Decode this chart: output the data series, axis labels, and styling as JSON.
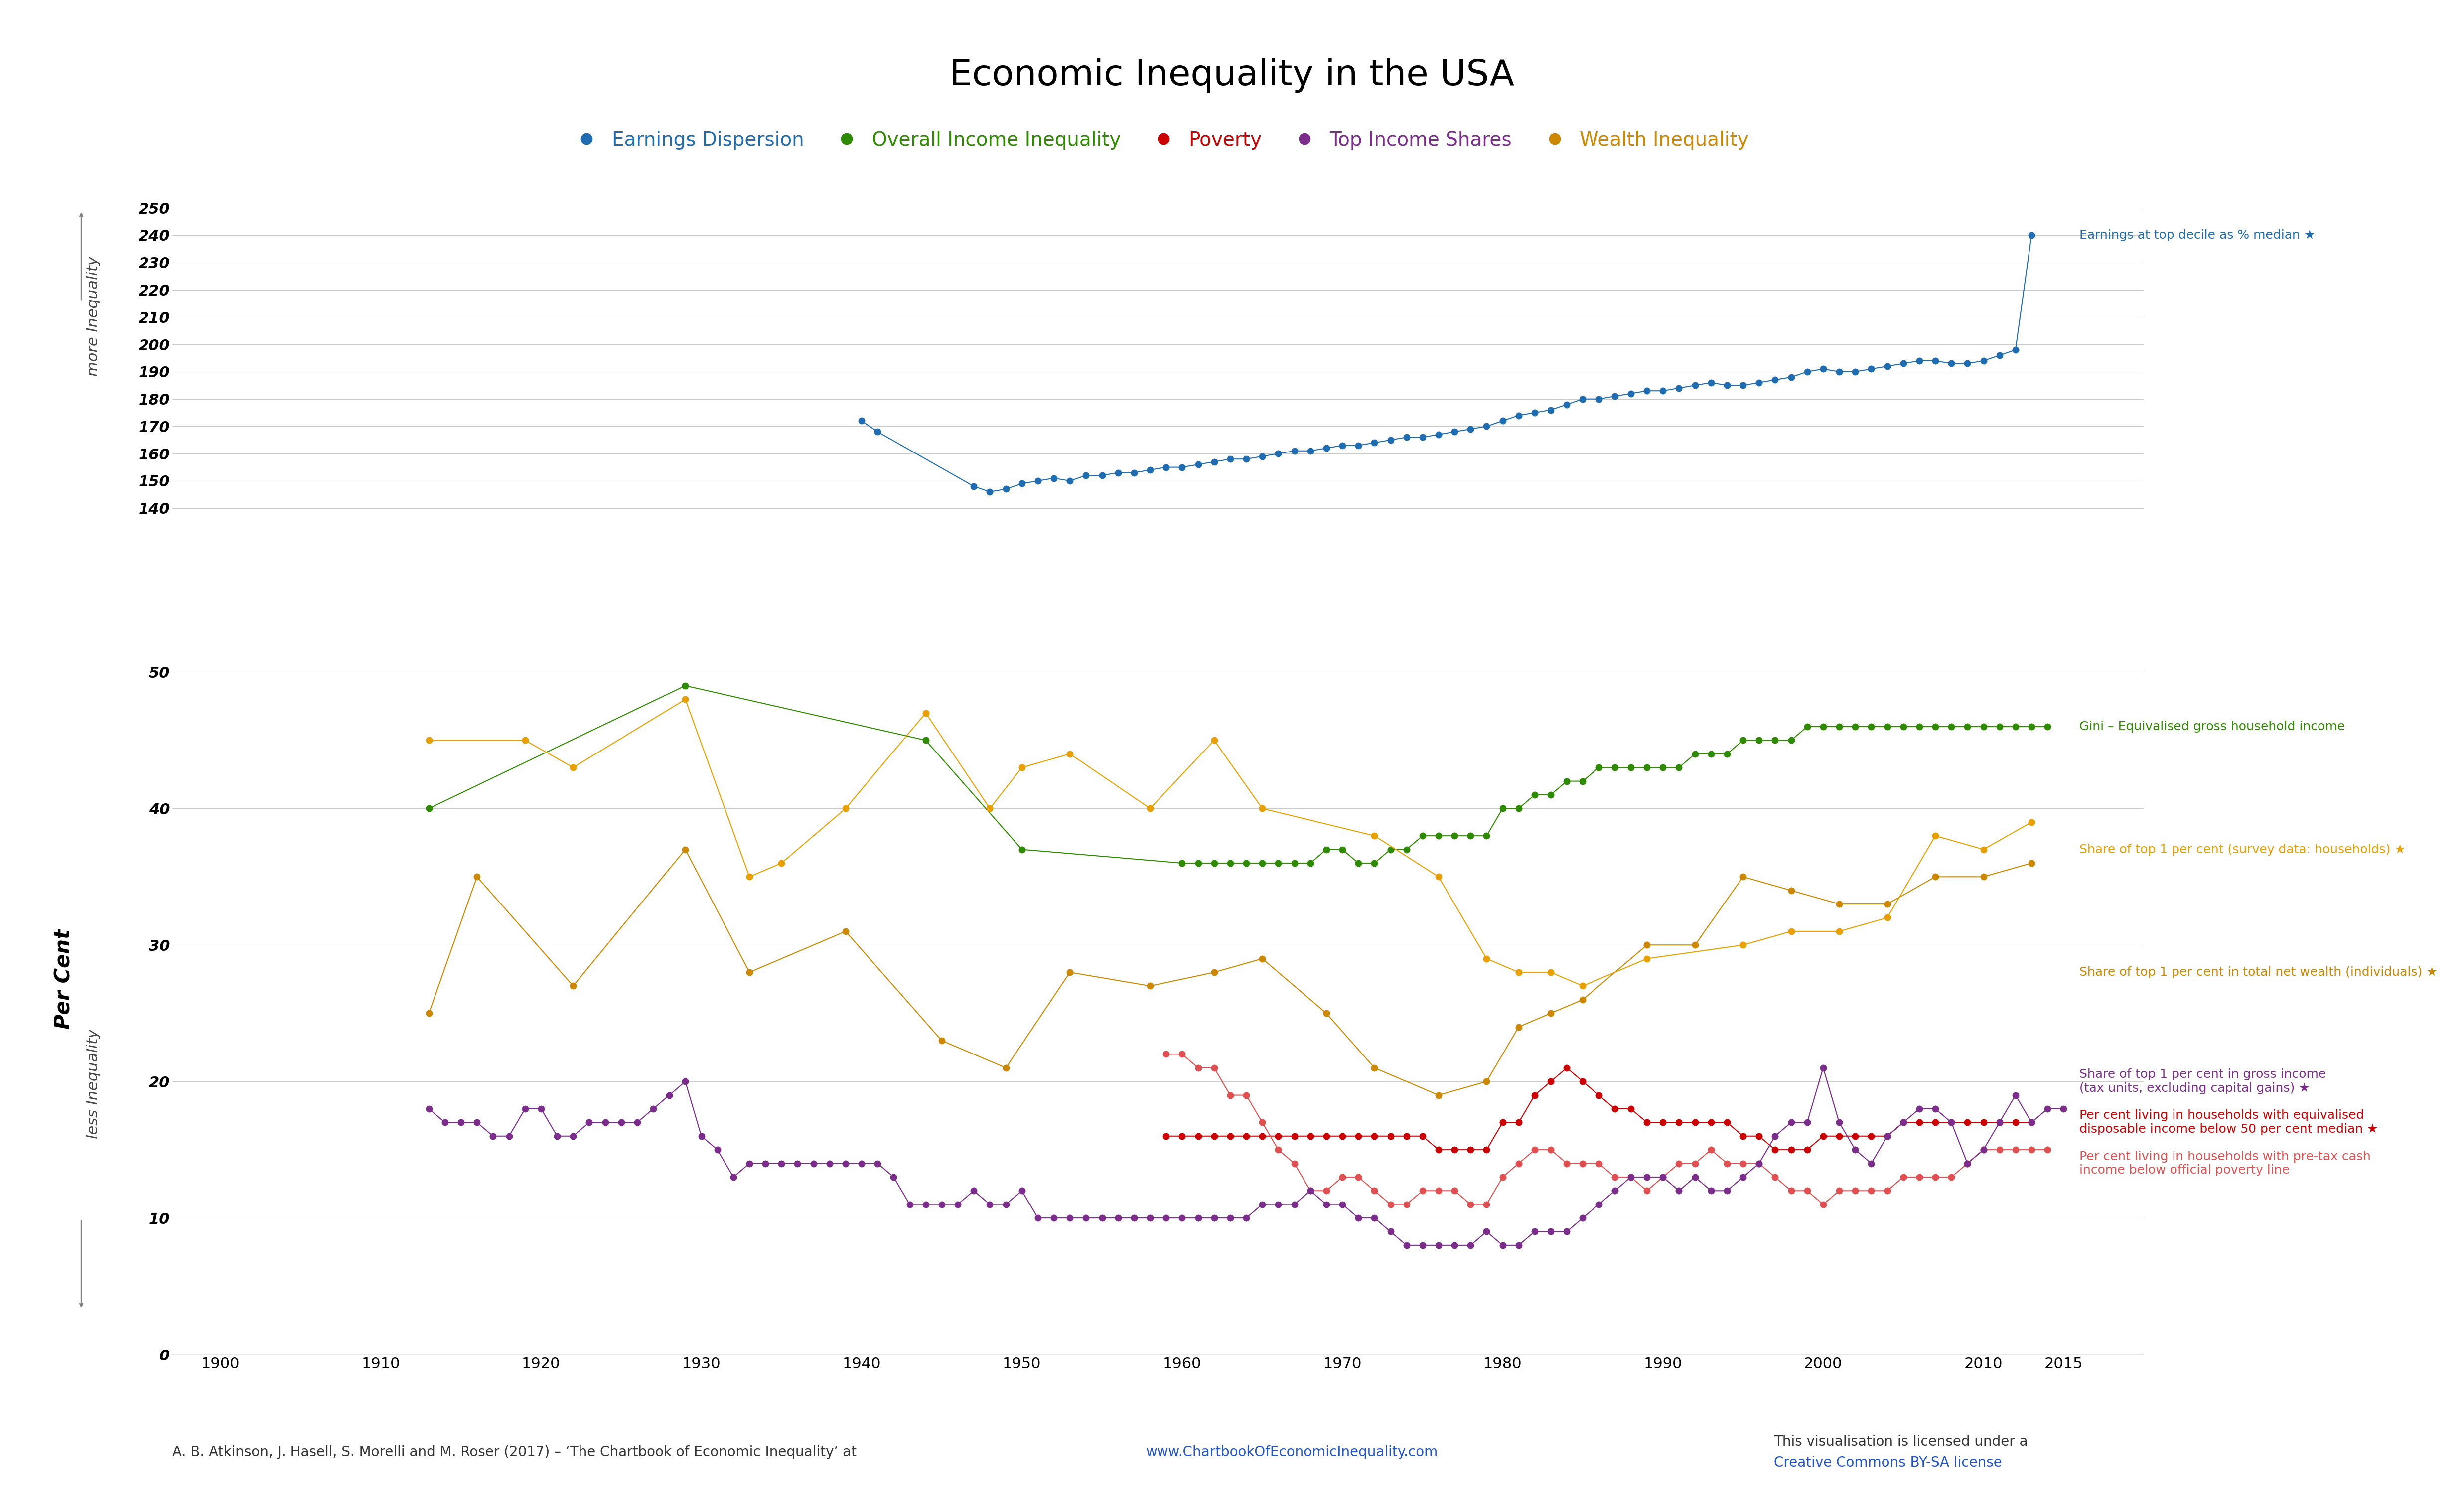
{
  "title": "Economic Inequality in the USA",
  "title_fontsize": 52,
  "background_color": "#ffffff",
  "legend_categories": [
    "Earnings Dispersion",
    "Overall Income Inequality",
    "Poverty",
    "Top Income Shares",
    "Wealth Inequality"
  ],
  "legend_colors": [
    "#1f6cb0",
    "#2e8b00",
    "#cc0000",
    "#7b2d8b",
    "#cc8800"
  ],
  "earnings_dispersion": {
    "label": "Earnings at top decile as % median ★",
    "color": "#1f6cb0",
    "x": [
      1940,
      1941,
      1947,
      1948,
      1949,
      1950,
      1951,
      1952,
      1953,
      1954,
      1955,
      1956,
      1957,
      1958,
      1959,
      1960,
      1961,
      1962,
      1963,
      1964,
      1965,
      1966,
      1967,
      1968,
      1969,
      1970,
      1971,
      1972,
      1973,
      1974,
      1975,
      1976,
      1977,
      1978,
      1979,
      1980,
      1981,
      1982,
      1983,
      1984,
      1985,
      1986,
      1987,
      1988,
      1989,
      1990,
      1991,
      1992,
      1993,
      1994,
      1995,
      1996,
      1997,
      1998,
      1999,
      2000,
      2001,
      2002,
      2003,
      2004,
      2005,
      2006,
      2007,
      2008,
      2009,
      2010,
      2011,
      2012,
      2013
    ],
    "y": [
      172,
      168,
      148,
      146,
      147,
      149,
      150,
      151,
      150,
      152,
      152,
      153,
      153,
      154,
      155,
      155,
      156,
      157,
      158,
      158,
      159,
      160,
      161,
      161,
      162,
      163,
      163,
      164,
      165,
      166,
      166,
      167,
      168,
      169,
      170,
      172,
      174,
      175,
      176,
      178,
      180,
      180,
      181,
      182,
      183,
      183,
      184,
      185,
      186,
      185,
      185,
      186,
      187,
      188,
      190,
      191,
      190,
      190,
      191,
      192,
      193,
      194,
      194,
      193,
      193,
      194,
      196,
      198,
      240
    ]
  },
  "gini": {
    "label": "Gini – Equivalised gross household income",
    "color": "#2e8b00",
    "x": [
      1913,
      1929,
      1944,
      1950,
      1960,
      1961,
      1962,
      1963,
      1964,
      1965,
      1966,
      1967,
      1968,
      1969,
      1970,
      1971,
      1972,
      1973,
      1974,
      1975,
      1976,
      1977,
      1978,
      1979,
      1980,
      1981,
      1982,
      1983,
      1984,
      1985,
      1986,
      1987,
      1988,
      1989,
      1990,
      1991,
      1992,
      1993,
      1994,
      1995,
      1996,
      1997,
      1998,
      1999,
      2000,
      2001,
      2002,
      2003,
      2004,
      2005,
      2006,
      2007,
      2008,
      2009,
      2010,
      2011,
      2012,
      2013,
      2014
    ],
    "y": [
      40,
      49,
      45,
      37,
      36,
      36,
      36,
      36,
      36,
      36,
      36,
      36,
      36,
      37,
      37,
      36,
      36,
      37,
      37,
      38,
      38,
      38,
      38,
      38,
      40,
      40,
      41,
      41,
      42,
      42,
      43,
      43,
      43,
      43,
      43,
      43,
      44,
      44,
      44,
      45,
      45,
      45,
      45,
      46,
      46,
      46,
      46,
      46,
      46,
      46,
      46,
      46,
      46,
      46,
      46,
      46,
      46,
      46,
      46
    ]
  },
  "poverty_50pct": {
    "label": "Per cent living in households with equivalised\ndisposable income below 50 per cent median ★",
    "color": "#cc0000",
    "x": [
      1959,
      1960,
      1961,
      1962,
      1963,
      1964,
      1965,
      1966,
      1967,
      1968,
      1969,
      1970,
      1971,
      1972,
      1973,
      1974,
      1975,
      1976,
      1977,
      1978,
      1979,
      1980,
      1981,
      1982,
      1983,
      1984,
      1985,
      1986,
      1987,
      1988,
      1989,
      1990,
      1991,
      1992,
      1993,
      1994,
      1995,
      1996,
      1997,
      1998,
      1999,
      2000,
      2001,
      2002,
      2003,
      2004,
      2005,
      2006,
      2007,
      2008,
      2009,
      2010,
      2011,
      2012,
      2013
    ],
    "y": [
      16,
      16,
      16,
      16,
      16,
      16,
      16,
      16,
      16,
      16,
      16,
      16,
      16,
      16,
      16,
      16,
      16,
      15,
      15,
      15,
      15,
      17,
      17,
      19,
      20,
      21,
      20,
      19,
      18,
      18,
      17,
      17,
      17,
      17,
      17,
      17,
      16,
      16,
      15,
      15,
      15,
      16,
      16,
      16,
      16,
      16,
      17,
      17,
      17,
      17,
      17,
      17,
      17,
      17,
      17
    ]
  },
  "poverty_official": {
    "label": "Per cent living in households with pre-tax cash\nincome below official poverty line",
    "color": "#e05050",
    "x": [
      1959,
      1960,
      1961,
      1962,
      1963,
      1964,
      1965,
      1966,
      1967,
      1968,
      1969,
      1970,
      1971,
      1972,
      1973,
      1974,
      1975,
      1976,
      1977,
      1978,
      1979,
      1980,
      1981,
      1982,
      1983,
      1984,
      1985,
      1986,
      1987,
      1988,
      1989,
      1990,
      1991,
      1992,
      1993,
      1994,
      1995,
      1996,
      1997,
      1998,
      1999,
      2000,
      2001,
      2002,
      2003,
      2004,
      2005,
      2006,
      2007,
      2008,
      2009,
      2010,
      2011,
      2012,
      2013,
      2014
    ],
    "y": [
      22,
      22,
      21,
      21,
      19,
      19,
      17,
      15,
      14,
      12,
      12,
      13,
      13,
      12,
      11,
      11,
      12,
      12,
      12,
      11,
      11,
      13,
      14,
      15,
      15,
      14,
      14,
      14,
      13,
      13,
      12,
      13,
      14,
      14,
      15,
      14,
      14,
      14,
      13,
      12,
      12,
      11,
      12,
      12,
      12,
      12,
      13,
      13,
      13,
      13,
      14,
      15,
      15,
      15,
      15,
      15
    ]
  },
  "top1_income_gross": {
    "label": "Share of top 1 per cent in gross income\n(tax units, excluding capital gains) ★",
    "color": "#7b2d8b",
    "x": [
      1913,
      1914,
      1915,
      1916,
      1917,
      1918,
      1919,
      1920,
      1921,
      1922,
      1923,
      1924,
      1925,
      1926,
      1927,
      1928,
      1929,
      1930,
      1931,
      1932,
      1933,
      1934,
      1935,
      1936,
      1937,
      1938,
      1939,
      1940,
      1941,
      1942,
      1943,
      1944,
      1945,
      1946,
      1947,
      1948,
      1949,
      1950,
      1951,
      1952,
      1953,
      1954,
      1955,
      1956,
      1957,
      1958,
      1959,
      1960,
      1961,
      1962,
      1963,
      1964,
      1965,
      1966,
      1967,
      1968,
      1969,
      1970,
      1971,
      1972,
      1973,
      1974,
      1975,
      1976,
      1977,
      1978,
      1979,
      1980,
      1981,
      1982,
      1983,
      1984,
      1985,
      1986,
      1987,
      1988,
      1989,
      1990,
      1991,
      1992,
      1993,
      1994,
      1995,
      1996,
      1997,
      1998,
      1999,
      2000,
      2001,
      2002,
      2003,
      2004,
      2005,
      2006,
      2007,
      2008,
      2009,
      2010,
      2011,
      2012,
      2013,
      2014,
      2015
    ],
    "y": [
      18,
      17,
      17,
      17,
      16,
      16,
      18,
      18,
      16,
      16,
      17,
      17,
      17,
      17,
      18,
      19,
      20,
      16,
      15,
      13,
      14,
      14,
      14,
      14,
      14,
      14,
      14,
      14,
      14,
      13,
      11,
      11,
      11,
      11,
      12,
      11,
      11,
      12,
      10,
      10,
      10,
      10,
      10,
      10,
      10,
      10,
      10,
      10,
      10,
      10,
      10,
      10,
      11,
      11,
      11,
      12,
      11,
      11,
      10,
      10,
      9,
      8,
      8,
      8,
      8,
      8,
      9,
      8,
      8,
      9,
      9,
      9,
      10,
      11,
      12,
      13,
      13,
      13,
      12,
      13,
      12,
      12,
      13,
      14,
      16,
      17,
      17,
      21,
      17,
      15,
      14,
      16,
      17,
      18,
      18,
      17,
      14,
      15,
      17,
      19,
      17,
      18,
      18
    ]
  },
  "top1_wealth": {
    "label": "Share of top 1 per cent in total net wealth (individuals) ★",
    "color": "#cc8800",
    "x": [
      1913,
      1916,
      1922,
      1929,
      1933,
      1939,
      1945,
      1949,
      1953,
      1958,
      1962,
      1965,
      1969,
      1972,
      1976,
      1979,
      1981,
      1983,
      1985,
      1989,
      1992,
      1995,
      1998,
      2001,
      2004,
      2007,
      2010,
      2013
    ],
    "y": [
      25,
      35,
      27,
      37,
      28,
      31,
      23,
      21,
      28,
      27,
      28,
      29,
      25,
      21,
      19,
      20,
      24,
      25,
      26,
      30,
      30,
      35,
      34,
      33,
      33,
      35,
      35,
      36
    ]
  },
  "top1_survey": {
    "label": "Share of top 1 per cent (survey data: households) ★",
    "color": "#e8a000",
    "x": [
      1913,
      1919,
      1922,
      1929,
      1933,
      1935,
      1939,
      1944,
      1948,
      1950,
      1953,
      1958,
      1962,
      1965,
      1972,
      1976,
      1979,
      1981,
      1983,
      1985,
      1989,
      1995,
      1998,
      2001,
      2004,
      2007,
      2010,
      2013
    ],
    "y": [
      45,
      45,
      43,
      48,
      35,
      36,
      40,
      47,
      40,
      43,
      44,
      40,
      45,
      40,
      38,
      35,
      29,
      28,
      28,
      27,
      29,
      30,
      31,
      31,
      32,
      38,
      37,
      39
    ]
  },
  "xlim": [
    1897,
    2020
  ],
  "ylim_upper": [
    135,
    260
  ],
  "ylim_lower": [
    0,
    55
  ],
  "upper_yticks": [
    140,
    150,
    160,
    170,
    180,
    190,
    200,
    210,
    220,
    230,
    240,
    250
  ],
  "lower_yticks": [
    0,
    10,
    20,
    30,
    40,
    50
  ],
  "xticks": [
    1900,
    1910,
    1920,
    1930,
    1940,
    1950,
    1960,
    1970,
    1980,
    1990,
    2000,
    2010,
    2015
  ],
  "xlabel_fontsize": 30,
  "ylabel": "Per Cent",
  "ylabel_fontsize": 30,
  "annotation_fontsize": 18,
  "tick_fontsize": 22,
  "axis_color": "#888888",
  "grid_color": "#cccccc",
  "source_text": "A. B. Atkinson, J. Hasell, S. Morelli and M. Roser (2017) – ‘The Chartbook of Economic Inequality’ at",
  "source_url": "www.ChartbookOfEconomicInequality.com",
  "license_text": "This visualisation is licensed under a",
  "license_link": "Creative Commons BY-SA license"
}
